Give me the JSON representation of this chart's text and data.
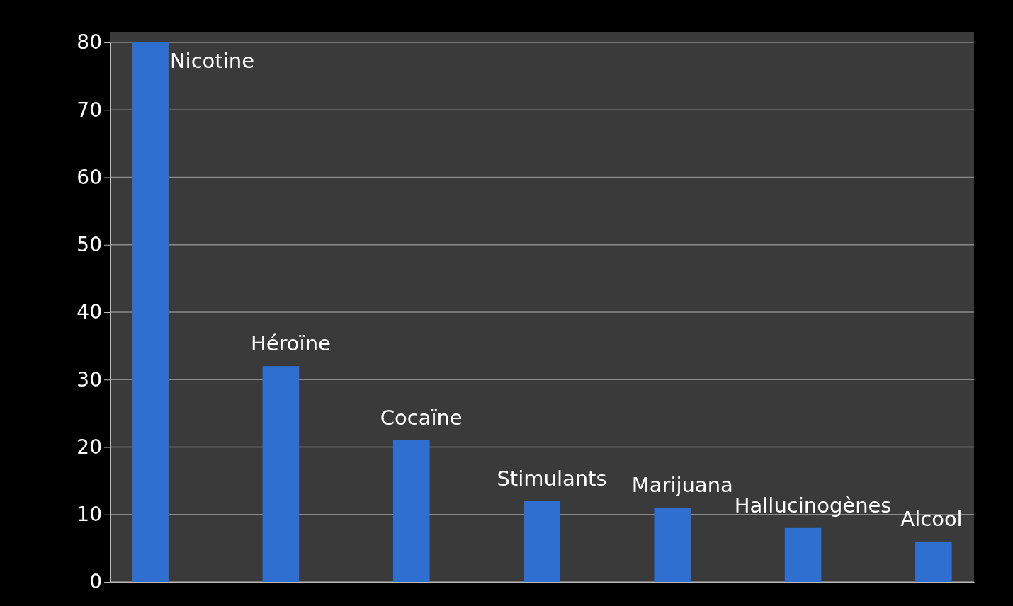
{
  "chart_data": {
    "type": "bar",
    "categories": [
      "Nicotine",
      "Héroïne",
      "Cocaïne",
      "Stimulants",
      "Marijuana",
      "Hallucinogènes",
      "Alcool"
    ],
    "values": [
      80,
      32,
      21,
      12,
      11,
      8,
      6
    ],
    "color": "#2f6fd0",
    "ylim": [
      0,
      80
    ],
    "yticks": [
      0,
      10,
      20,
      30,
      40,
      50,
      60,
      70,
      80
    ],
    "grid": "y",
    "tick_labels": "y"
  }
}
